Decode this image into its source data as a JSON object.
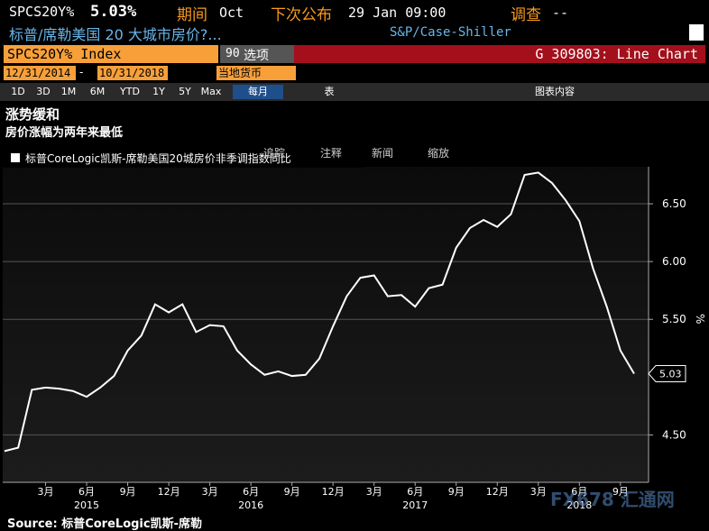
{
  "header": {
    "ticker": "SPCS20Y%",
    "last": "5.03%",
    "period_label": "期间",
    "period": "Oct",
    "next_label": "下次公布",
    "next": "29 Jan 09:00",
    "survey_label": "调查",
    "survey": "--",
    "name": "标普/席勒美国 20 大城市房价?...",
    "source_name": "S&P/Case-Shiller"
  },
  "security_bar": {
    "security": "SPCS20Y% Index",
    "menu_num": "90",
    "menu": "选项",
    "function": "G 309803: Line Chart"
  },
  "date_bar": {
    "start": "12/31/2014",
    "dash": "-",
    "end": "10/31/2018",
    "currency": "当地货币"
  },
  "toolbar": {
    "ranges": [
      "1D",
      "3D",
      "1M",
      "6M",
      "YTD",
      "1Y",
      "5Y",
      "Max"
    ],
    "frequency": "每月",
    "table": "表",
    "content": "图表内容"
  },
  "chart_tools": [
    "追踪",
    "注释",
    "新闻",
    "缩放"
  ],
  "chart_data": {
    "type": "line",
    "title": "涨势缓和",
    "subtitle": "房价涨幅为两年来最低",
    "y_unit": "%",
    "x": [
      "2014-12",
      "2015-01",
      "2015-02",
      "2015-03",
      "2015-04",
      "2015-05",
      "2015-06",
      "2015-07",
      "2015-08",
      "2015-09",
      "2015-10",
      "2015-11",
      "2015-12",
      "2016-01",
      "2016-02",
      "2016-03",
      "2016-04",
      "2016-05",
      "2016-06",
      "2016-07",
      "2016-08",
      "2016-09",
      "2016-10",
      "2016-11",
      "2016-12",
      "2017-01",
      "2017-02",
      "2017-03",
      "2017-04",
      "2017-05",
      "2017-06",
      "2017-07",
      "2017-08",
      "2017-09",
      "2017-10",
      "2017-11",
      "2017-12",
      "2018-01",
      "2018-02",
      "2018-03",
      "2018-04",
      "2018-05",
      "2018-06",
      "2018-07",
      "2018-08",
      "2018-09",
      "2018-10"
    ],
    "series": [
      {
        "name": "标普CoreLogic凯斯-席勒美国20城房价非季调指数同比",
        "color": "#ffffff",
        "values": [
          4.36,
          4.39,
          4.89,
          4.91,
          4.9,
          4.88,
          4.83,
          4.91,
          5.01,
          5.23,
          5.36,
          5.63,
          5.56,
          5.63,
          5.39,
          5.45,
          5.44,
          5.23,
          5.11,
          5.02,
          5.05,
          5.01,
          5.02,
          5.16,
          5.44,
          5.7,
          5.86,
          5.88,
          5.7,
          5.71,
          5.61,
          5.77,
          5.8,
          6.12,
          6.29,
          6.36,
          6.3,
          6.41,
          6.75,
          6.77,
          6.68,
          6.53,
          6.35,
          5.94,
          5.61,
          5.23,
          5.03
        ]
      }
    ],
    "last_value_label": true,
    "ylim": [
      4.09,
      6.82
    ],
    "yticks": [
      {
        "value": 4.5,
        "label": "4.50"
      },
      {
        "value": 5.5,
        "label": "5.50"
      },
      {
        "value": 6.0,
        "label": "6.00"
      },
      {
        "value": 6.5,
        "label": "6.50"
      }
    ],
    "xticks": [
      {
        "value": "2015-03",
        "label": "3月"
      },
      {
        "value": "2015-06",
        "label": "6月"
      },
      {
        "value": "2015-09",
        "label": "9月"
      },
      {
        "value": "2015-12",
        "label": "12月"
      },
      {
        "value": "2016-03",
        "label": "3月"
      },
      {
        "value": "2016-06",
        "label": "6月"
      },
      {
        "value": "2016-09",
        "label": "9月"
      },
      {
        "value": "2016-12",
        "label": "12月"
      },
      {
        "value": "2017-03",
        "label": "3月"
      },
      {
        "value": "2017-06",
        "label": "6月"
      },
      {
        "value": "2017-09",
        "label": "9月"
      },
      {
        "value": "2017-12",
        "label": "12月"
      },
      {
        "value": "2018-03",
        "label": "3月"
      },
      {
        "value": "2018-06",
        "label": "6月"
      },
      {
        "value": "2018-09",
        "label": "9月"
      }
    ],
    "year_labels": [
      {
        "value": "2015-06",
        "label": "2015"
      },
      {
        "value": "2016-06",
        "label": "2016"
      },
      {
        "value": "2017-06",
        "label": "2017"
      },
      {
        "value": "2018-06",
        "label": "2018"
      }
    ],
    "grid": true,
    "source": "Source: 标普CoreLogic凯斯-席勒"
  },
  "watermark": "FX678 汇通网"
}
